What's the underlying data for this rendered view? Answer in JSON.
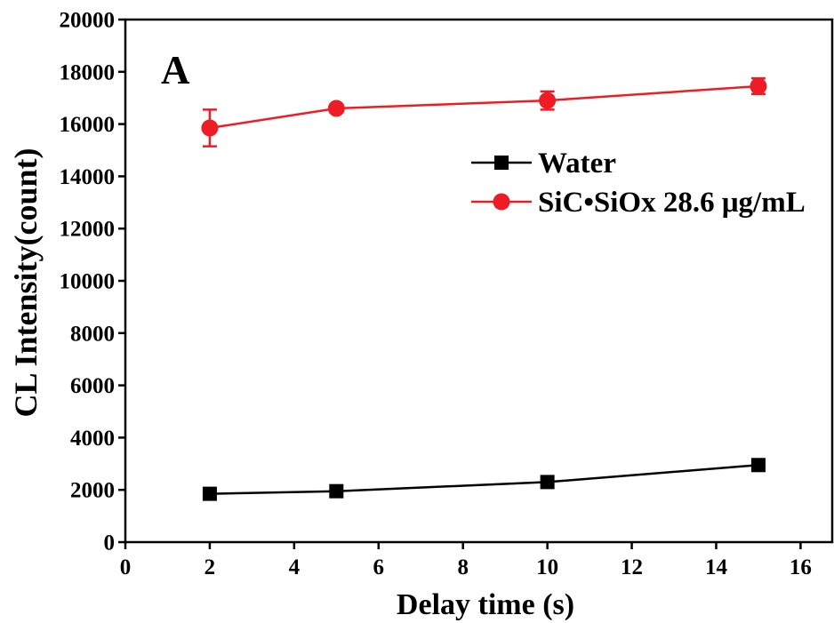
{
  "chart_data": {
    "type": "line",
    "panel_label": "A",
    "xlabel": "Delay time (s)",
    "ylabel": "CL Intensity(count)",
    "xlim": [
      0,
      16.75
    ],
    "ylim": [
      0,
      20000
    ],
    "xticks": [
      0,
      2,
      4,
      6,
      8,
      10,
      12,
      14,
      16
    ],
    "yticks": [
      0,
      2000,
      4000,
      6000,
      8000,
      10000,
      12000,
      14000,
      16000,
      18000,
      20000
    ],
    "grid": false,
    "legend_position": "upper-right",
    "series": [
      {
        "name": "Water",
        "color": "#000000",
        "marker": "square",
        "x": [
          2,
          5,
          10,
          15
        ],
        "y": [
          1850,
          1950,
          2300,
          2950
        ]
      },
      {
        "name": "SiC•SiOx 28.6 μg/mL",
        "color": "#ee1c24",
        "marker": "circle",
        "x": [
          2,
          5,
          10,
          15
        ],
        "y": [
          15850,
          16600,
          16900,
          17450
        ],
        "yerr": [
          700,
          150,
          350,
          300
        ]
      }
    ]
  }
}
